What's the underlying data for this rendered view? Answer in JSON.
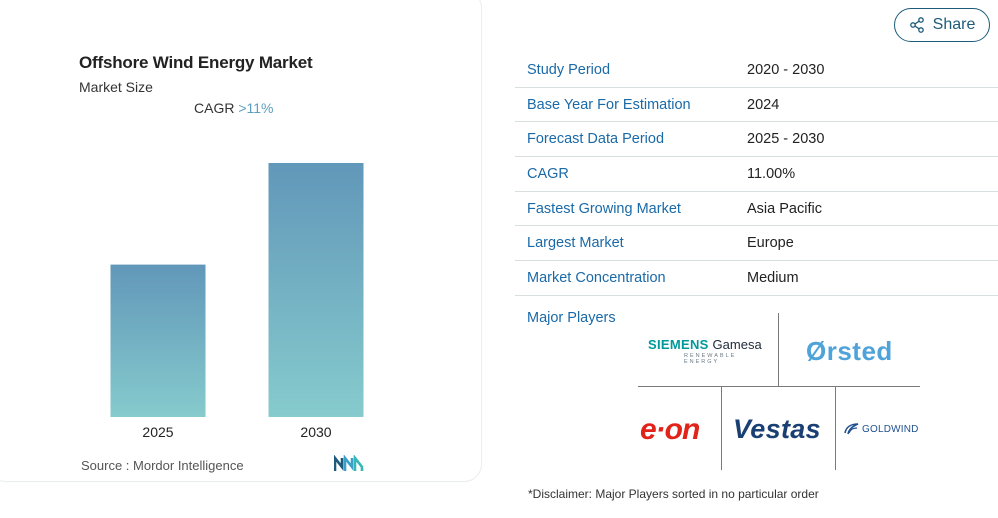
{
  "chart": {
    "title": "Offshore Wind Energy Market",
    "subtitle": "Market Size",
    "cagr_label": "CAGR",
    "cagr_value": ">11%",
    "source": "Source :  Mordor Intelligence"
  },
  "chart_data": {
    "type": "bar",
    "title": "Offshore Wind Energy Market",
    "categories": [
      "2025",
      "2030"
    ],
    "values": [
      150,
      250
    ],
    "ylim": [
      0,
      250
    ],
    "xlabel": "",
    "ylabel": "",
    "grid": false,
    "colors": {
      "bar_top": "#6197b9",
      "bar_bottom": "#86cbcd"
    }
  },
  "share": {
    "label": "Share"
  },
  "info": [
    {
      "key": "Study Period",
      "value": "2020 - 2030"
    },
    {
      "key": "Base Year For Estimation",
      "value": "2024"
    },
    {
      "key": "Forecast Data Period",
      "value": "2025 - 2030"
    },
    {
      "key": "CAGR",
      "value": "11.00%"
    },
    {
      "key": "Fastest Growing Market",
      "value": "Asia Pacific"
    },
    {
      "key": "Largest Market",
      "value": "Europe"
    },
    {
      "key": "Market Concentration",
      "value": "Medium"
    }
  ],
  "players": {
    "label": "Major Players",
    "logos": {
      "siemens_main": "SIEMENS",
      "siemens_gamesa": "Gamesa",
      "siemens_sub": "RENEWABLE ENERGY",
      "orsted": "Ørsted",
      "eon": "e·on",
      "vestas": "Vestas",
      "goldwind": "GOLDWIND"
    }
  },
  "disclaimer": "*Disclaimer: Major Players sorted in no particular order",
  "colors": {
    "accent": "#1a6aa8",
    "share_border": "#1e5b7a",
    "cagr_accent": "#5a9fc0"
  }
}
